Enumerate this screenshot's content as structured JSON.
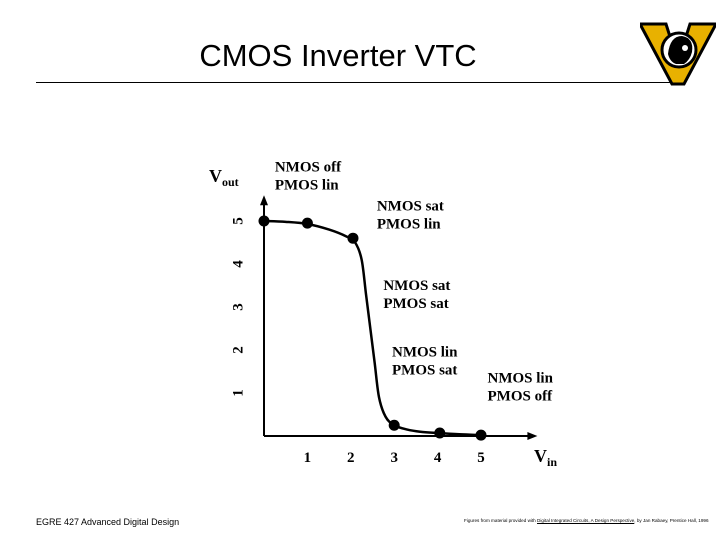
{
  "slide": {
    "title": "CMOS Inverter VTC",
    "footer_left": "EGRE 427 Advanced Digital Design",
    "footer_right_prefix": "Figures from material provided with ",
    "footer_right_book": "Digital Integrated Circuits, A Design Perspective",
    "footer_right_suffix": ", by Jan Rabaey, Prentice Hall, 1996"
  },
  "colors": {
    "ink": "#000000",
    "logo_gold": "#e8b100"
  },
  "chart_data": {
    "type": "line",
    "xlabel": "V",
    "xlabel_sub": "in",
    "ylabel": "V",
    "ylabel_sub": "out",
    "xlim": [
      0,
      6.3
    ],
    "ylim": [
      0,
      5.6
    ],
    "xticks": [
      1,
      2,
      3,
      4,
      5
    ],
    "yticks": [
      1,
      2,
      3,
      4,
      5
    ],
    "grid": false,
    "curve": {
      "x": [
        0,
        0.5,
        1.0,
        1.5,
        1.9,
        2.1,
        2.25,
        2.35,
        2.45,
        2.55,
        2.65,
        2.8,
        3.0,
        3.3,
        3.6,
        4.0,
        4.5,
        5.0
      ],
      "y": [
        5.0,
        4.98,
        4.93,
        4.8,
        4.64,
        4.5,
        4.1,
        3.3,
        2.5,
        1.7,
        0.9,
        0.45,
        0.25,
        0.15,
        0.1,
        0.07,
        0.04,
        0.02
      ]
    },
    "markers": {
      "x": [
        0,
        1,
        2.05,
        3.0,
        4.05,
        5.0
      ],
      "y": [
        5.0,
        4.95,
        4.6,
        0.25,
        0.07,
        0.02
      ]
    },
    "annotations": [
      {
        "lines": [
          "NMOS off",
          "PMOS lin"
        ],
        "x": 0.25,
        "y": 6.15
      },
      {
        "lines": [
          "NMOS sat",
          "PMOS lin"
        ],
        "x": 2.6,
        "y": 5.25
      },
      {
        "lines": [
          "NMOS sat",
          "PMOS sat"
        ],
        "x": 2.75,
        "y": 3.4
      },
      {
        "lines": [
          "NMOS lin",
          "PMOS sat"
        ],
        "x": 2.95,
        "y": 1.85
      },
      {
        "lines": [
          "NMOS lin",
          "PMOS off"
        ],
        "x": 5.15,
        "y": 1.25
      }
    ]
  }
}
